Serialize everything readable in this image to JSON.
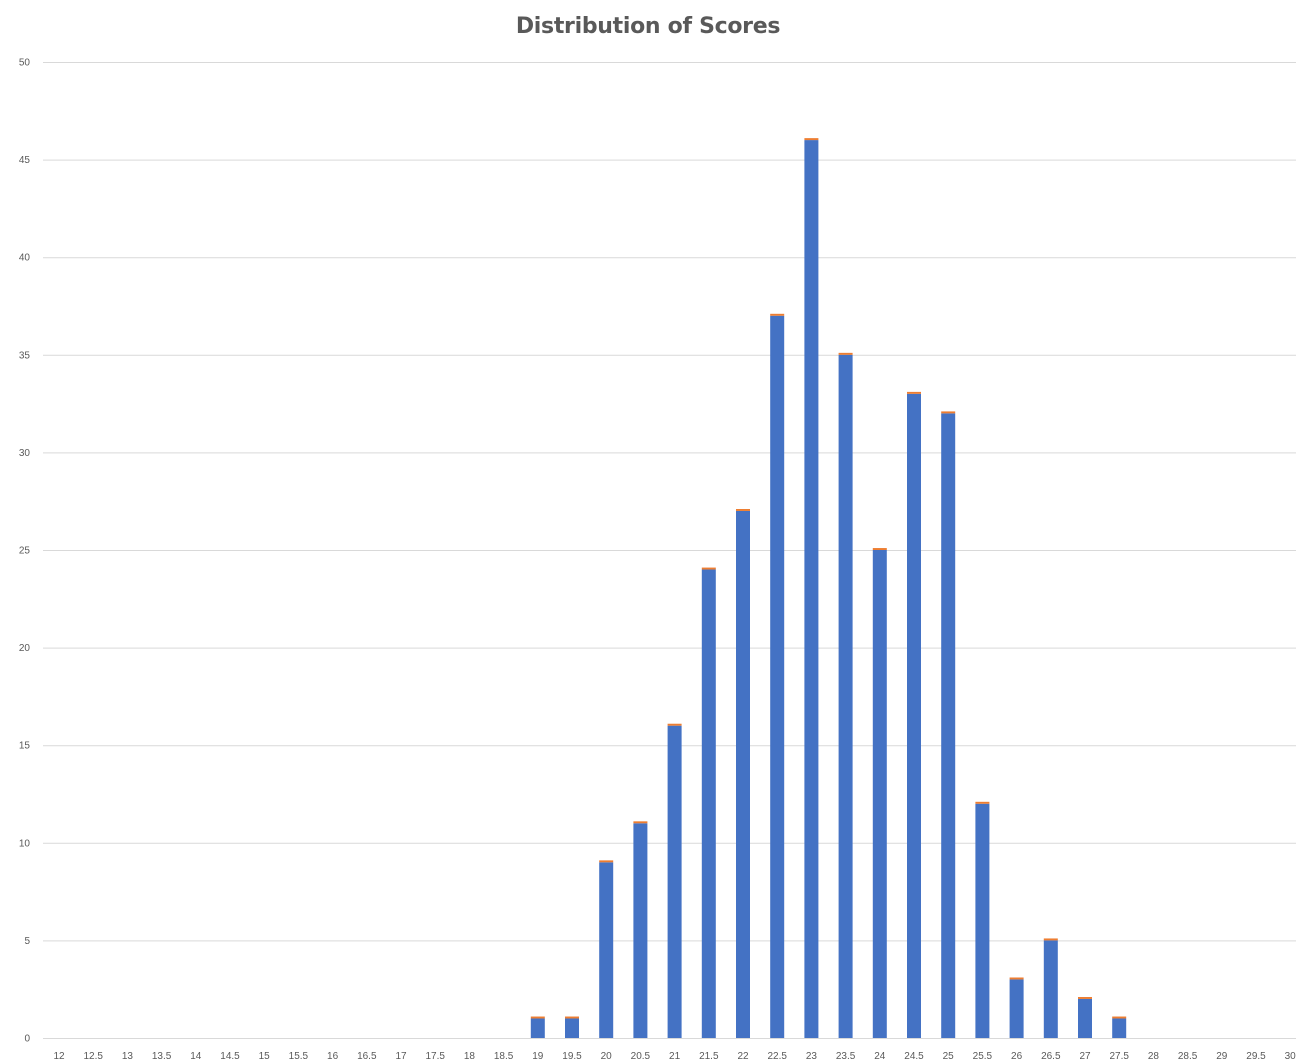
{
  "chart_data": {
    "type": "bar",
    "title": "Distribution of Scores",
    "xlabel": "",
    "ylabel": "",
    "ylim": [
      0,
      50
    ],
    "yticks": [
      "0",
      "5",
      "10",
      "15",
      "20",
      "25",
      "30",
      "35",
      "40",
      "45",
      "50"
    ],
    "grid": true,
    "legend": "none",
    "stacked": true,
    "categories": [
      "12",
      "12.5",
      "13",
      "13.5",
      "14",
      "14.5",
      "15",
      "15.5",
      "16",
      "16.5",
      "17",
      "17.5",
      "18",
      "18.5",
      "19",
      "19.5",
      "20",
      "20.5",
      "21",
      "21.5",
      "22",
      "22.5",
      "23",
      "23.5",
      "24",
      "24.5",
      "25",
      "25.5",
      "26",
      "26.5",
      "27",
      "27.5",
      "28",
      "28.5",
      "29",
      "29.5",
      "30"
    ],
    "series": [
      {
        "color": "#4472c4",
        "values": [
          0,
          0,
          0,
          0,
          0,
          0,
          0,
          0,
          0,
          0,
          0,
          0,
          0,
          0,
          1,
          1,
          9,
          11,
          16,
          24,
          27,
          37,
          46,
          35,
          25,
          33,
          32,
          12,
          3,
          5,
          2,
          1,
          0,
          0,
          0,
          0,
          0
        ]
      },
      {
        "color": "#ed7d31",
        "values": [
          0,
          0,
          0,
          0,
          0,
          0,
          0,
          0,
          0,
          0,
          0,
          0,
          0,
          0,
          0.1,
          0.1,
          0.1,
          0.1,
          0.1,
          0.1,
          0.1,
          0.1,
          0.1,
          0.1,
          0.1,
          0.1,
          0.1,
          0.1,
          0.1,
          0.1,
          0.1,
          0.1,
          0,
          0,
          0,
          0,
          0
        ]
      }
    ]
  }
}
